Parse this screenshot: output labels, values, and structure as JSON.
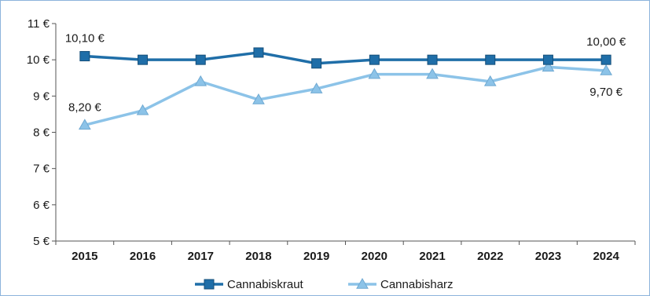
{
  "chart_data": {
    "type": "line",
    "title": "",
    "xlabel": "",
    "ylabel": "",
    "categories": [
      "2015",
      "2016",
      "2017",
      "2018",
      "2019",
      "2020",
      "2021",
      "2022",
      "2023",
      "2024"
    ],
    "y_ticks": [
      "5 €",
      "6 €",
      "7 €",
      "8 €",
      "9 €",
      "10 €",
      "11 €"
    ],
    "ylim": [
      5,
      11
    ],
    "grid": false,
    "legend_position": "bottom",
    "series": [
      {
        "name": "Cannabiskraut",
        "marker": "square",
        "color": "#1f6ea8",
        "values": [
          10.1,
          10.0,
          10.0,
          10.2,
          9.9,
          10.0,
          10.0,
          10.0,
          10.0,
          10.0
        ]
      },
      {
        "name": "Cannabisharz",
        "marker": "triangle",
        "color": "#8cc3e8",
        "values": [
          8.2,
          8.6,
          9.4,
          8.9,
          9.2,
          9.6,
          9.6,
          9.4,
          9.8,
          9.7
        ]
      }
    ],
    "annotations": [
      {
        "text": "10,10 €",
        "series": 0,
        "index": 0,
        "anchor": "above"
      },
      {
        "text": "10,00 €",
        "series": 0,
        "index": 9,
        "anchor": "above"
      },
      {
        "text": "8,20 €",
        "series": 1,
        "index": 0,
        "anchor": "above"
      },
      {
        "text": "9,70 €",
        "series": 1,
        "index": 9,
        "anchor": "below"
      }
    ]
  }
}
